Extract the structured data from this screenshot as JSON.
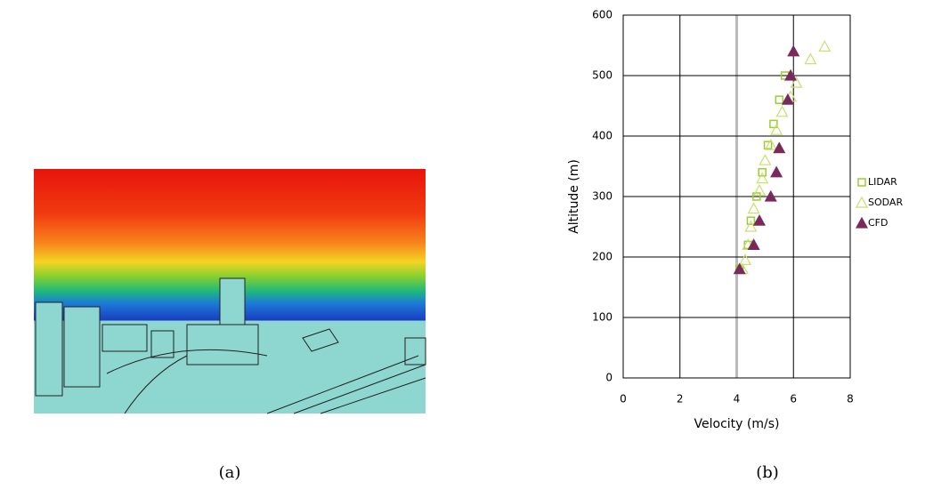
{
  "panel_a": {
    "caption": "(a)"
  },
  "chart_data": {
    "type": "scatter",
    "caption": "(b)",
    "x_label": "Velocity (m/s)",
    "y_label": "Altitude (m)",
    "xlim": [
      0,
      8
    ],
    "ylim": [
      0,
      600
    ],
    "xticks": [
      0,
      2,
      4,
      6,
      8
    ],
    "yticks": [
      0,
      100,
      200,
      300,
      400,
      500,
      600
    ],
    "grid": true,
    "highlight_x": 4,
    "legend": "right",
    "series": [
      {
        "name": "LIDAR",
        "color": "#9acd32",
        "marker": "square",
        "x": [
          5.7,
          5.5,
          5.3,
          5.1,
          4.9,
          4.7,
          4.5,
          4.4,
          4.1
        ],
        "values": [
          500,
          460,
          420,
          385,
          340,
          300,
          260,
          220,
          180
        ]
      },
      {
        "name": "SODAR",
        "color": "#c8e06e",
        "marker": "triangle-open",
        "x": [
          7.1,
          6.6,
          6.1,
          5.9,
          5.6,
          5.4,
          5.2,
          5.0,
          4.9,
          4.8,
          4.6,
          4.5,
          4.4,
          4.3,
          4.2
        ],
        "values": [
          548,
          527,
          488,
          465,
          440,
          410,
          385,
          360,
          330,
          310,
          280,
          250,
          220,
          195,
          180
        ]
      },
      {
        "name": "CFD",
        "color": "#7a2a5a",
        "marker": "triangle",
        "x": [
          6.0,
          5.9,
          5.8,
          5.5,
          5.4,
          5.2,
          4.8,
          4.6,
          4.1
        ],
        "values": [
          540,
          500,
          460,
          380,
          340,
          300,
          260,
          220,
          180
        ]
      }
    ]
  }
}
